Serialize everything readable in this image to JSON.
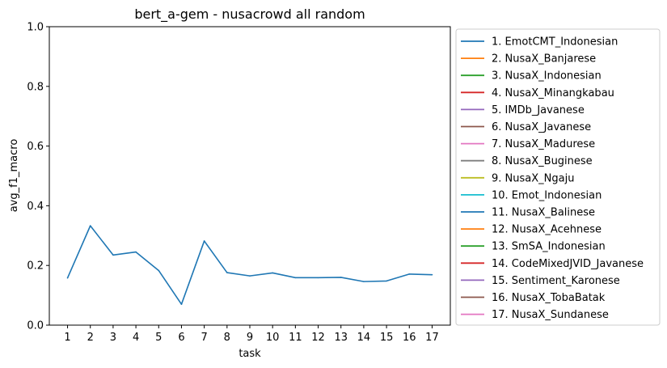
{
  "chart_data": {
    "type": "line",
    "title": "bert_a-gem - nusacrowd all random",
    "xlabel": "task",
    "ylabel": "avg_f1_macro",
    "ylim": [
      0,
      1
    ],
    "yticks": [
      "0.0",
      "0.2",
      "0.4",
      "0.6",
      "0.8",
      "1.0"
    ],
    "x": [
      1,
      2,
      3,
      4,
      5,
      6,
      7,
      8,
      9,
      10,
      11,
      12,
      13,
      14,
      15,
      16,
      17
    ],
    "series": [
      {
        "name": "avg_f1_macro",
        "color": "#1f77b4",
        "values": [
          0.158,
          0.333,
          0.235,
          0.245,
          0.183,
          0.07,
          0.282,
          0.176,
          0.165,
          0.175,
          0.159,
          0.159,
          0.16,
          0.146,
          0.148,
          0.171,
          0.169
        ]
      }
    ],
    "legend": {
      "placement": "outside-right",
      "entries": [
        {
          "label": "1. EmotCMT_Indonesian",
          "color": "#1f77b4"
        },
        {
          "label": "2. NusaX_Banjarese",
          "color": "#ff7f0e"
        },
        {
          "label": "3. NusaX_Indonesian",
          "color": "#2ca02c"
        },
        {
          "label": "4. NusaX_Minangkabau",
          "color": "#d62728"
        },
        {
          "label": "5. IMDb_Javanese",
          "color": "#9467bd"
        },
        {
          "label": "6. NusaX_Javanese",
          "color": "#8c564b"
        },
        {
          "label": "7. NusaX_Madurese",
          "color": "#e377c2"
        },
        {
          "label": "8. NusaX_Buginese",
          "color": "#7f7f7f"
        },
        {
          "label": "9. NusaX_Ngaju",
          "color": "#bcbd22"
        },
        {
          "label": "10. Emot_Indonesian",
          "color": "#17becf"
        },
        {
          "label": "11. NusaX_Balinese",
          "color": "#1f77b4"
        },
        {
          "label": "12. NusaX_Acehnese",
          "color": "#ff7f0e"
        },
        {
          "label": "13. SmSA_Indonesian",
          "color": "#2ca02c"
        },
        {
          "label": "14. CodeMixedJVID_Javanese",
          "color": "#d62728"
        },
        {
          "label": "15. Sentiment_Karonese",
          "color": "#9467bd"
        },
        {
          "label": "16. NusaX_TobaBatak",
          "color": "#8c564b"
        },
        {
          "label": "17. NusaX_Sundanese",
          "color": "#e377c2"
        }
      ]
    }
  }
}
